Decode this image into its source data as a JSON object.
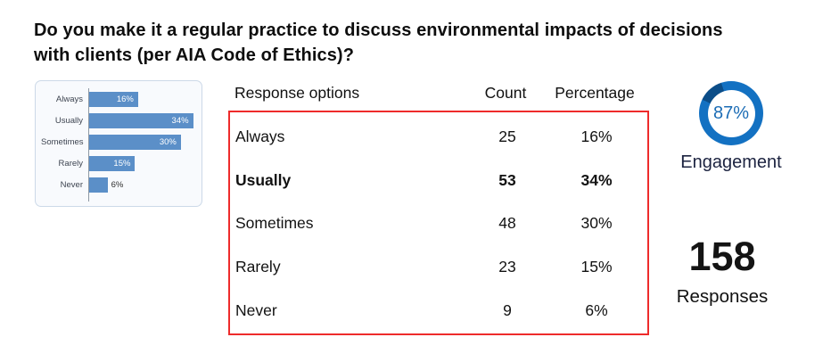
{
  "title": "Do you make it a regular practice to discuss environmental impacts of decisions with clients (per AIA Code of Ethics)?",
  "chart_data": [
    {
      "type": "bar",
      "orientation": "horizontal",
      "title": "",
      "xlabel": "",
      "ylabel": "",
      "categories": [
        "Always",
        "Usually",
        "Sometimes",
        "Rarely",
        "Never"
      ],
      "values": [
        16,
        34,
        30,
        15,
        6
      ],
      "value_labels": [
        "16%",
        "34%",
        "30%",
        "15%",
        "6%"
      ],
      "unit": "%",
      "xlim": [
        0,
        35
      ],
      "grid": false,
      "legend": false,
      "bar_color": "#5b8fc8"
    },
    {
      "type": "donut-gauge",
      "value": 87,
      "value_label": "87%",
      "label": "Engagement",
      "value_text_color": "#1b6cb5",
      "segments": [
        {
          "name": "engaged",
          "value": 87,
          "color": "#1371c2"
        },
        {
          "name": "remainder",
          "value": 13,
          "color": "#0b4d88"
        }
      ]
    }
  ],
  "table": {
    "headers": [
      "Response options",
      "Count",
      "Percentage"
    ],
    "rows": [
      {
        "option": "Always",
        "count": "25",
        "percentage": "16%",
        "bold": false
      },
      {
        "option": "Usually",
        "count": "53",
        "percentage": "34%",
        "bold": true
      },
      {
        "option": "Sometimes",
        "count": "48",
        "percentage": "30%",
        "bold": false
      },
      {
        "option": "Rarely",
        "count": "23",
        "percentage": "15%",
        "bold": false
      },
      {
        "option": "Never",
        "count": "9",
        "percentage": "6%",
        "bold": false
      }
    ],
    "highlight_border_color": "#ee2b2b"
  },
  "kpi": {
    "responses_value": "158",
    "responses_label": "Responses"
  }
}
